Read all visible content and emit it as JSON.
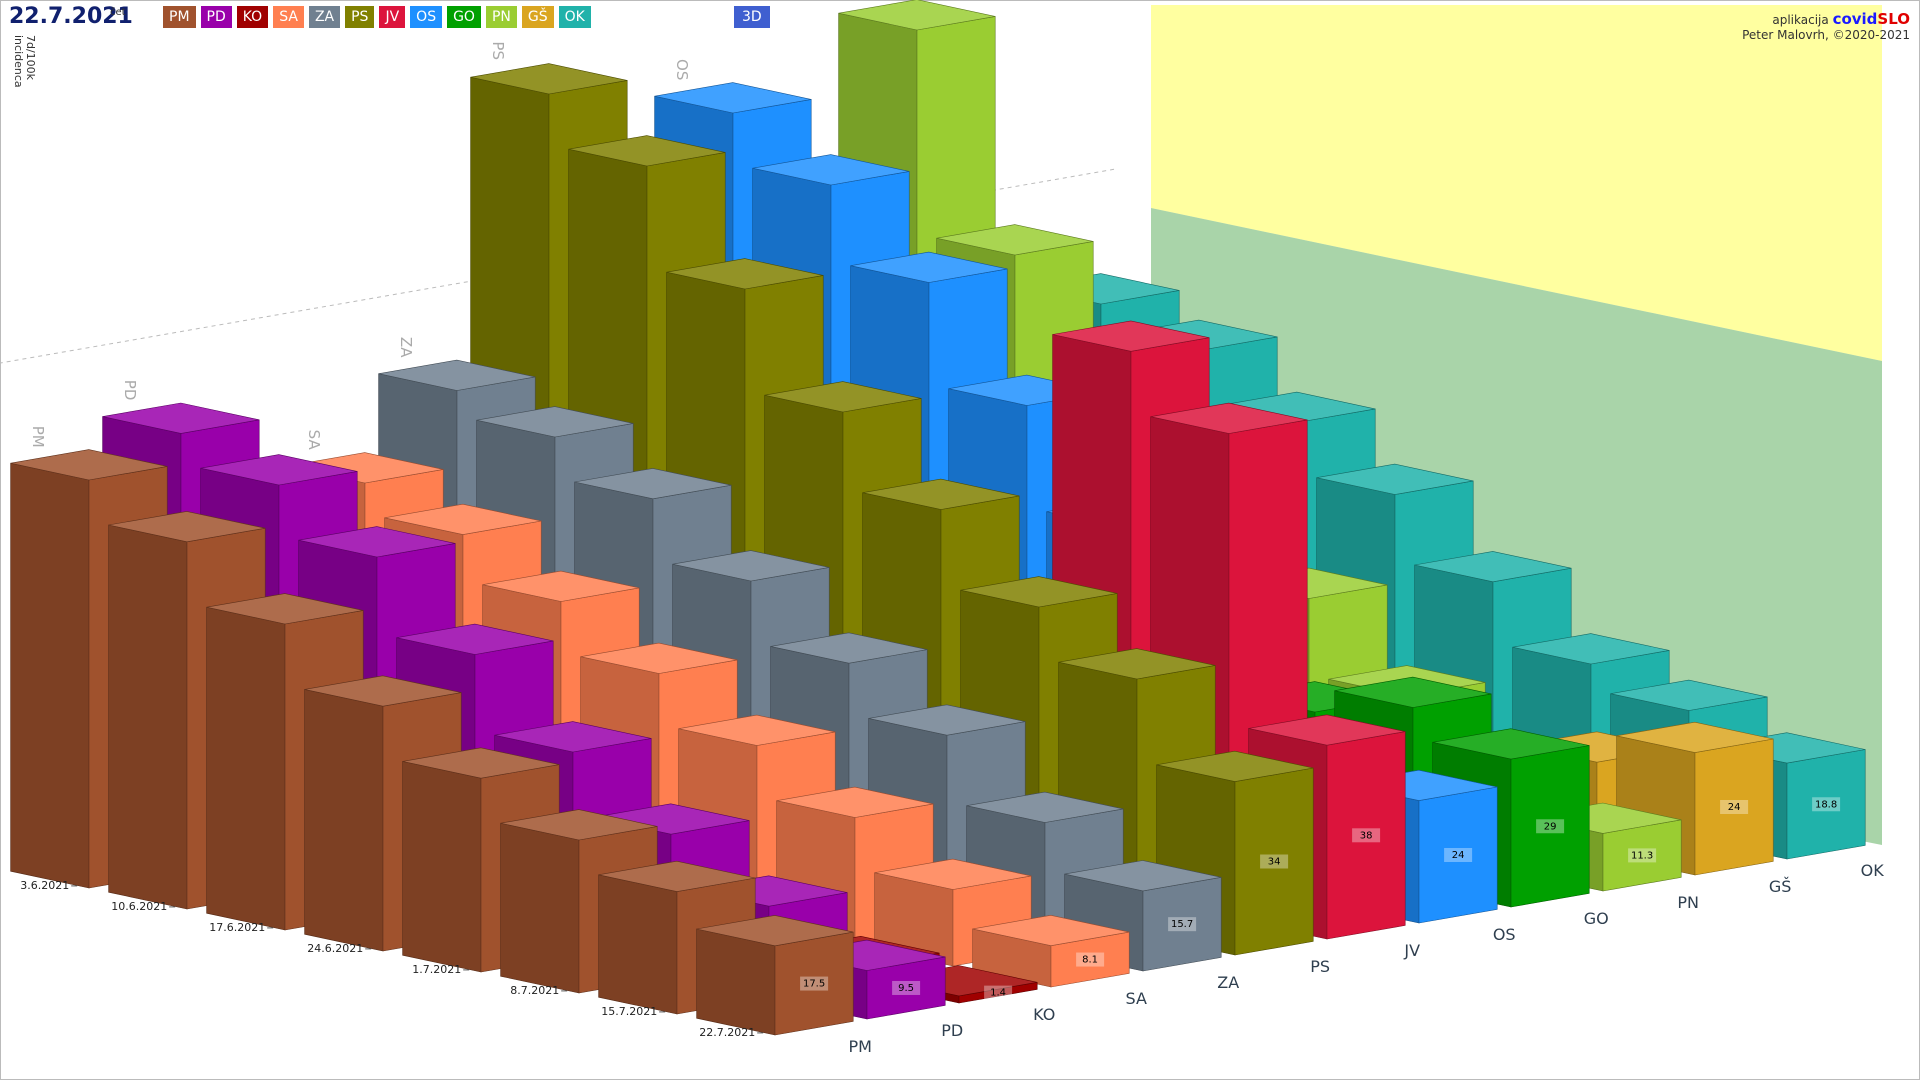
{
  "header": {
    "date": "22.7.2021",
    "weekday": "čet",
    "mode": "3D",
    "app_prefix": "aplikacija",
    "app_name_a": "covid",
    "app_name_b": "SLO",
    "credit": "Peter Malovrh, ©2020-2021"
  },
  "chart_data": {
    "type": "bar3d",
    "y_label": [
      "7d/100k",
      "incidenca"
    ],
    "x": [
      "3.6.2021",
      "10.6.2021",
      "17.6.2021",
      "24.6.2021",
      "1.7.2021",
      "8.7.2021",
      "15.7.2021",
      "22.7.2021"
    ],
    "ylim": [
      0,
      150
    ],
    "yticks": [
      100
    ],
    "grid": true,
    "series": [
      {
        "name": "PM",
        "color": "#a0522d",
        "values": [
          80,
          72,
          60,
          48,
          38,
          30,
          24,
          17.5
        ]
      },
      {
        "name": "PD",
        "color": "#9900aa",
        "values": [
          86,
          80,
          70,
          55,
          40,
          28,
          18,
          9.5
        ]
      },
      {
        "name": "KO",
        "color": "#a00000",
        "values": [
          20,
          15,
          12,
          9,
          6,
          4,
          3,
          1.4
        ]
      },
      {
        "name": "SA",
        "color": "#ff7f50",
        "values": [
          70,
          64,
          55,
          45,
          35,
          25,
          15,
          8.1
        ]
      },
      {
        "name": "ZA",
        "color": "#708090",
        "values": [
          85,
          80,
          72,
          60,
          48,
          38,
          25,
          15.7
        ]
      },
      {
        "name": "PS",
        "color": "#808000",
        "values": [
          140,
          130,
          110,
          90,
          75,
          60,
          50,
          34
        ]
      },
      {
        "name": "JV",
        "color": "#dc143c",
        "values": [
          25,
          20,
          18,
          22,
          50,
          107,
          95,
          38
        ]
      },
      {
        "name": "OS",
        "color": "#1e90ff",
        "values": [
          130,
          120,
          105,
          85,
          65,
          45,
          30,
          24
        ]
      },
      {
        "name": "GO",
        "color": "#00a000",
        "values": [
          95,
          85,
          70,
          55,
          40,
          30,
          35,
          29
        ]
      },
      {
        "name": "PN",
        "color": "#9acd32",
        "values": [
          140,
          100,
          75,
          60,
          45,
          30,
          20,
          11.3
        ]
      },
      {
        "name": "GŠ",
        "color": "#daa520",
        "values": [
          5,
          6,
          5,
          8,
          10,
          12,
          18,
          24
        ]
      },
      {
        "name": "OK",
        "color": "#20b2aa",
        "values": [
          80,
          75,
          65,
          55,
          42,
          30,
          25,
          18.8
        ]
      }
    ]
  }
}
